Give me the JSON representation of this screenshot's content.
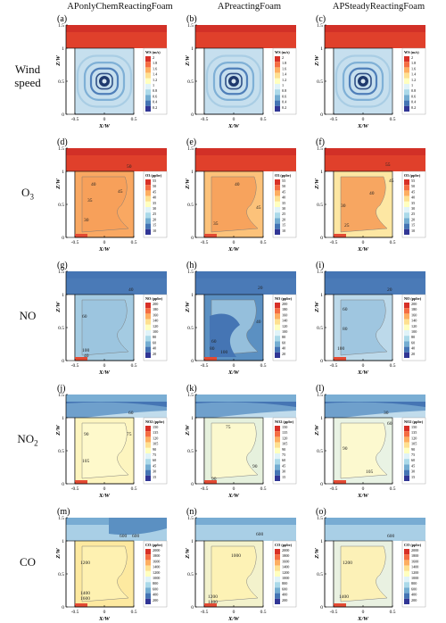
{
  "columns": [
    "APonlyChemReactingFoam",
    "APreactingFoam",
    "APSteadyReactingFoam"
  ],
  "axis": {
    "xlabel": "X/W",
    "ylabel": "Z/W",
    "xticks": [
      "-0.5",
      "0",
      "0.5"
    ],
    "yticks": [
      "0",
      "0.5",
      "1",
      "1.5"
    ]
  },
  "rows": [
    {
      "label": "Wind speed",
      "label_html": "Wind<br>speed",
      "key": "ws",
      "legend_title": "WS (m/s)",
      "legend_ticks": [
        "2",
        "1.8",
        "1.6",
        "1.4",
        "1.2",
        "1",
        "0.8",
        "0.6",
        "0.4",
        "0.2"
      ],
      "palette": [
        "#d73027",
        "#f46d43",
        "#fdae61",
        "#fee090",
        "#ffffbf",
        "#e0f3f8",
        "#abd9e9",
        "#74add1",
        "#4575b4",
        "#313695"
      ],
      "panels": [
        {
          "letter": "(a)",
          "labels": []
        },
        {
          "letter": "(b)",
          "labels": []
        },
        {
          "letter": "(c)",
          "labels": []
        }
      ]
    },
    {
      "label": "O3",
      "label_html": "O<sub>3</sub>",
      "key": "o3",
      "legend_title": "O3 (ppbv)",
      "legend_ticks": [
        "55",
        "50",
        "45",
        "40",
        "35",
        "30",
        "25",
        "20",
        "15",
        "10"
      ],
      "palette": [
        "#d73027",
        "#f46d43",
        "#fdae61",
        "#fee090",
        "#ffffbf",
        "#e0f3f8",
        "#abd9e9",
        "#74add1",
        "#4575b4",
        "#313695"
      ],
      "panels": [
        {
          "letter": "(d)",
          "labels": [
            "35",
            "40",
            "45",
            "50",
            "30"
          ]
        },
        {
          "letter": "(e)",
          "labels": [
            "40",
            "45",
            "35"
          ]
        },
        {
          "letter": "(f)",
          "labels": [
            "55",
            "45",
            "40",
            "30",
            "25"
          ]
        }
      ]
    },
    {
      "label": "NO",
      "label_html": "NO",
      "key": "no",
      "legend_title": "NO (ppbv)",
      "legend_ticks": [
        "200",
        "180",
        "160",
        "140",
        "120",
        "100",
        "80",
        "60",
        "40",
        "20"
      ],
      "palette": [
        "#d73027",
        "#f46d43",
        "#fdae61",
        "#fee090",
        "#ffffbf",
        "#e0f3f8",
        "#abd9e9",
        "#74add1",
        "#4575b4",
        "#313695"
      ],
      "panels": [
        {
          "letter": "(g)",
          "labels": [
            "40",
            "60",
            "100",
            "40"
          ]
        },
        {
          "letter": "(h)",
          "labels": [
            "20",
            "40",
            "60",
            "80",
            "100"
          ]
        },
        {
          "letter": "(i)",
          "labels": [
            "20",
            "60",
            "80",
            "100"
          ]
        }
      ]
    },
    {
      "label": "NO2",
      "label_html": "NO<sub>2</sub>",
      "key": "no2",
      "legend_title": "NO2 (ppbv)",
      "legend_ticks": [
        "150",
        "135",
        "120",
        "105",
        "90",
        "75",
        "60",
        "45",
        "30",
        "15"
      ],
      "palette": [
        "#d73027",
        "#f46d43",
        "#fdae61",
        "#fee090",
        "#ffffbf",
        "#e0f3f8",
        "#abd9e9",
        "#74add1",
        "#4575b4",
        "#313695"
      ],
      "panels": [
        {
          "letter": "(j)",
          "labels": [
            "60",
            "75",
            "90",
            "105"
          ]
        },
        {
          "letter": "(k)",
          "labels": [
            "75",
            "90",
            "90"
          ]
        },
        {
          "letter": "(l)",
          "labels": [
            "30",
            "60",
            "90",
            "105"
          ]
        }
      ]
    },
    {
      "label": "CO",
      "label_html": "CO",
      "key": "co",
      "legend_title": "CO (ppbv)",
      "legend_ticks": [
        "2000",
        "1800",
        "1600",
        "1400",
        "1200",
        "1000",
        "800",
        "600",
        "400",
        "200"
      ],
      "palette": [
        "#d73027",
        "#f46d43",
        "#fdae61",
        "#fee090",
        "#ffffbf",
        "#e0f3f8",
        "#abd9e9",
        "#74add1",
        "#4575b4",
        "#313695"
      ],
      "panels": [
        {
          "letter": "(m)",
          "labels": [
            "600",
            "600",
            "1200",
            "1400",
            "1600"
          ]
        },
        {
          "letter": "(n)",
          "labels": [
            "600",
            "1000",
            "1200",
            "1400"
          ]
        },
        {
          "letter": "(o)",
          "labels": [
            "600",
            "1200",
            "1400"
          ]
        }
      ]
    }
  ]
}
